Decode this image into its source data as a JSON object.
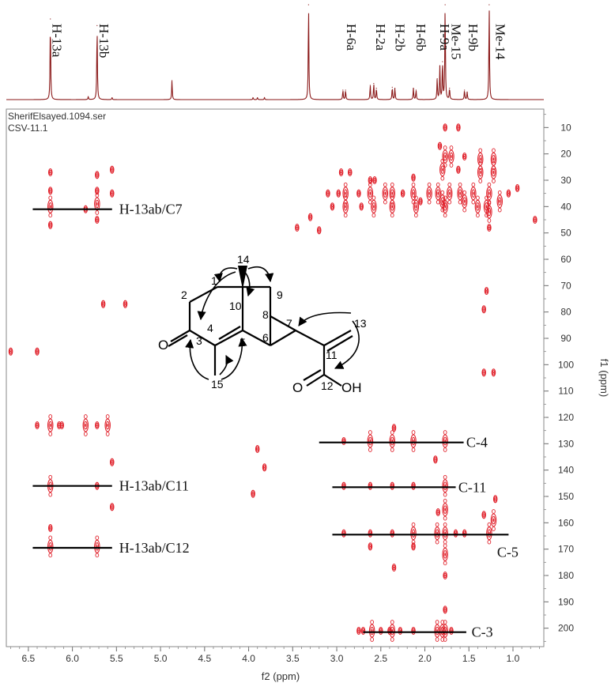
{
  "header": {
    "filename": "SherifElsayed.1094.ser",
    "sample": "CSV-11.1"
  },
  "chart_data": {
    "type": "heatmap",
    "title": "",
    "xlabel": "f2 (ppm)",
    "ylabel": "f1 (ppm)",
    "xlim": [
      6.75,
      0.65
    ],
    "ylim": [
      207,
      3
    ],
    "x_ticks": [
      "6.5",
      "6.0",
      "5.5",
      "5.0",
      "4.5",
      "4.0",
      "3.5",
      "3.0",
      "2.5",
      "2.0",
      "1.5",
      "1.0"
    ],
    "x_tick_values": [
      6.5,
      6.0,
      5.5,
      5.0,
      4.5,
      4.0,
      3.5,
      3.0,
      2.5,
      2.0,
      1.5,
      1.0
    ],
    "y_ticks": [
      "10",
      "20",
      "30",
      "40",
      "50",
      "60",
      "70",
      "80",
      "90",
      "100",
      "110",
      "120",
      "130",
      "140",
      "150",
      "160",
      "170",
      "180",
      "190",
      "200"
    ],
    "y_tick_values": [
      10,
      20,
      30,
      40,
      50,
      60,
      70,
      80,
      90,
      100,
      110,
      120,
      130,
      140,
      150,
      160,
      170,
      180,
      190,
      200
    ],
    "spectrum_1d": {
      "peaks": [
        {
          "ppm": 6.25,
          "height": 0.85
        },
        {
          "ppm": 5.72,
          "height": 0.78
        },
        {
          "ppm": 5.82,
          "height": 0.03
        },
        {
          "ppm": 5.55,
          "height": 0.02
        },
        {
          "ppm": 4.87,
          "height": 0.2
        },
        {
          "ppm": 3.95,
          "height": 0.02
        },
        {
          "ppm": 3.9,
          "height": 0.02
        },
        {
          "ppm": 3.82,
          "height": 0.02
        },
        {
          "ppm": 3.32,
          "height": 1.0
        },
        {
          "ppm": 2.93,
          "height": 0.1
        },
        {
          "ppm": 2.9,
          "height": 0.1
        },
        {
          "ppm": 2.62,
          "height": 0.15
        },
        {
          "ppm": 2.58,
          "height": 0.17
        },
        {
          "ppm": 2.55,
          "height": 0.12
        },
        {
          "ppm": 2.37,
          "height": 0.13
        },
        {
          "ppm": 2.34,
          "height": 0.12
        },
        {
          "ppm": 2.13,
          "height": 0.12
        },
        {
          "ppm": 2.1,
          "height": 0.1
        },
        {
          "ppm": 1.86,
          "height": 0.22
        },
        {
          "ppm": 1.83,
          "height": 0.35
        },
        {
          "ppm": 1.8,
          "height": 0.4
        },
        {
          "ppm": 1.77,
          "height": 1.0
        },
        {
          "ppm": 1.72,
          "height": 0.12
        },
        {
          "ppm": 1.55,
          "height": 0.1
        },
        {
          "ppm": 1.52,
          "height": 0.08
        },
        {
          "ppm": 1.27,
          "height": 1.0
        }
      ],
      "labels": [
        {
          "text": "H-13a",
          "ppm": 6.25
        },
        {
          "text": "H-13b",
          "ppm": 5.72
        },
        {
          "text": "H-6a",
          "ppm": 2.91
        },
        {
          "text": "H-2a",
          "ppm": 2.58
        },
        {
          "text": "H-2b",
          "ppm": 2.36
        },
        {
          "text": "H-6b",
          "ppm": 2.12
        },
        {
          "text": "H-9a",
          "ppm": 1.85
        },
        {
          "text": "Me-15",
          "ppm": 1.72
        },
        {
          "text": "H-9b",
          "ppm": 1.53
        },
        {
          "text": "Me-14",
          "ppm": 1.22
        }
      ]
    },
    "cross_peaks": [
      {
        "x": 1.77,
        "y": 10,
        "s": 1
      },
      {
        "x": 1.62,
        "y": 10,
        "s": 1
      },
      {
        "x": 1.83,
        "y": 17,
        "s": 1
      },
      {
        "x": 1.37,
        "y": 22,
        "s": 2
      },
      {
        "x": 1.37,
        "y": 27,
        "s": 2
      },
      {
        "x": 1.22,
        "y": 22,
        "s": 2
      },
      {
        "x": 1.22,
        "y": 27,
        "s": 2
      },
      {
        "x": 1.27,
        "y": 35,
        "s": 2
      },
      {
        "x": 1.27,
        "y": 42,
        "s": 2
      },
      {
        "x": 1.27,
        "y": 48,
        "s": 1
      },
      {
        "x": 1.77,
        "y": 21,
        "s": 2
      },
      {
        "x": 1.7,
        "y": 21,
        "s": 2
      },
      {
        "x": 1.8,
        "y": 26,
        "s": 2
      },
      {
        "x": 1.62,
        "y": 26,
        "s": 1
      },
      {
        "x": 1.55,
        "y": 21,
        "s": 1
      },
      {
        "x": 2.95,
        "y": 27,
        "s": 1
      },
      {
        "x": 2.85,
        "y": 27,
        "s": 1
      },
      {
        "x": 2.62,
        "y": 30,
        "s": 1
      },
      {
        "x": 2.57,
        "y": 30,
        "s": 1
      },
      {
        "x": 2.13,
        "y": 29,
        "s": 1
      },
      {
        "x": 2.9,
        "y": 35,
        "s": 2
      },
      {
        "x": 2.9,
        "y": 40,
        "s": 2
      },
      {
        "x": 2.62,
        "y": 35,
        "s": 2
      },
      {
        "x": 2.58,
        "y": 40,
        "s": 2
      },
      {
        "x": 2.45,
        "y": 35,
        "s": 2
      },
      {
        "x": 2.37,
        "y": 35,
        "s": 2
      },
      {
        "x": 2.37,
        "y": 40,
        "s": 2
      },
      {
        "x": 2.25,
        "y": 35,
        "s": 1
      },
      {
        "x": 2.13,
        "y": 35,
        "s": 2
      },
      {
        "x": 2.1,
        "y": 40,
        "s": 2
      },
      {
        "x": 1.95,
        "y": 35,
        "s": 2
      },
      {
        "x": 1.85,
        "y": 35,
        "s": 2
      },
      {
        "x": 1.8,
        "y": 38,
        "s": 2
      },
      {
        "x": 1.77,
        "y": 40,
        "s": 2
      },
      {
        "x": 1.72,
        "y": 35,
        "s": 2
      },
      {
        "x": 1.6,
        "y": 35,
        "s": 2
      },
      {
        "x": 1.55,
        "y": 38,
        "s": 2
      },
      {
        "x": 1.45,
        "y": 35,
        "s": 2
      },
      {
        "x": 1.4,
        "y": 40,
        "s": 2
      },
      {
        "x": 1.3,
        "y": 40,
        "s": 2
      },
      {
        "x": 1.15,
        "y": 38,
        "s": 2
      },
      {
        "x": 3.1,
        "y": 35,
        "s": 1
      },
      {
        "x": 3.05,
        "y": 40,
        "s": 1
      },
      {
        "x": 2.98,
        "y": 35,
        "s": 1
      },
      {
        "x": 2.75,
        "y": 35,
        "s": 1
      },
      {
        "x": 2.72,
        "y": 40,
        "s": 1
      },
      {
        "x": 2.05,
        "y": 38,
        "s": 1
      },
      {
        "x": 1.05,
        "y": 35,
        "s": 1
      },
      {
        "x": 0.95,
        "y": 33,
        "s": 1
      },
      {
        "x": 0.75,
        "y": 45,
        "s": 1
      },
      {
        "x": 3.45,
        "y": 48,
        "s": 1
      },
      {
        "x": 3.2,
        "y": 49,
        "s": 1
      },
      {
        "x": 3.3,
        "y": 44,
        "s": 1
      },
      {
        "x": 6.25,
        "y": 40,
        "s": 2
      },
      {
        "x": 6.25,
        "y": 34,
        "s": 1
      },
      {
        "x": 6.25,
        "y": 27,
        "s": 1
      },
      {
        "x": 6.25,
        "y": 47,
        "s": 1
      },
      {
        "x": 5.72,
        "y": 39,
        "s": 2
      },
      {
        "x": 5.72,
        "y": 34,
        "s": 1
      },
      {
        "x": 5.72,
        "y": 28,
        "s": 1
      },
      {
        "x": 5.72,
        "y": 45,
        "s": 1
      },
      {
        "x": 5.85,
        "y": 41,
        "s": 1
      },
      {
        "x": 5.55,
        "y": 35,
        "s": 1
      },
      {
        "x": 5.55,
        "y": 26,
        "s": 1
      },
      {
        "x": 6.25,
        "y": 123,
        "s": 2
      },
      {
        "x": 6.4,
        "y": 123,
        "s": 1
      },
      {
        "x": 6.15,
        "y": 123,
        "s": 1
      },
      {
        "x": 6.12,
        "y": 123,
        "s": 1
      },
      {
        "x": 5.85,
        "y": 123,
        "s": 2
      },
      {
        "x": 5.72,
        "y": 123,
        "s": 1
      },
      {
        "x": 5.6,
        "y": 123,
        "s": 2
      },
      {
        "x": 5.55,
        "y": 137,
        "s": 1
      },
      {
        "x": 6.25,
        "y": 146,
        "s": 2
      },
      {
        "x": 5.72,
        "y": 146,
        "s": 1
      },
      {
        "x": 5.55,
        "y": 154,
        "s": 1
      },
      {
        "x": 6.25,
        "y": 169,
        "s": 2
      },
      {
        "x": 6.25,
        "y": 162,
        "s": 1
      },
      {
        "x": 5.72,
        "y": 169,
        "s": 2
      },
      {
        "x": 5.65,
        "y": 77,
        "s": 1
      },
      {
        "x": 5.4,
        "y": 77,
        "s": 1
      },
      {
        "x": 6.7,
        "y": 95,
        "s": 1
      },
      {
        "x": 6.4,
        "y": 95,
        "s": 1
      },
      {
        "x": 1.33,
        "y": 79,
        "s": 1
      },
      {
        "x": 1.3,
        "y": 72,
        "s": 1
      },
      {
        "x": 1.22,
        "y": 103,
        "s": 1
      },
      {
        "x": 1.33,
        "y": 103,
        "s": 1
      },
      {
        "x": 3.9,
        "y": 132,
        "s": 1
      },
      {
        "x": 3.82,
        "y": 139,
        "s": 1
      },
      {
        "x": 3.95,
        "y": 149,
        "s": 1
      },
      {
        "x": 2.92,
        "y": 129,
        "s": 1
      },
      {
        "x": 2.62,
        "y": 129,
        "s": 2
      },
      {
        "x": 2.37,
        "y": 129,
        "s": 2
      },
      {
        "x": 2.13,
        "y": 129,
        "s": 2
      },
      {
        "x": 1.77,
        "y": 129,
        "s": 2
      },
      {
        "x": 1.88,
        "y": 136,
        "s": 1
      },
      {
        "x": 2.35,
        "y": 124,
        "s": 1
      },
      {
        "x": 2.92,
        "y": 146,
        "s": 1
      },
      {
        "x": 2.62,
        "y": 146,
        "s": 1
      },
      {
        "x": 2.37,
        "y": 146,
        "s": 1
      },
      {
        "x": 2.13,
        "y": 146,
        "s": 1
      },
      {
        "x": 1.77,
        "y": 146,
        "s": 2
      },
      {
        "x": 2.92,
        "y": 164,
        "s": 1
      },
      {
        "x": 2.62,
        "y": 164,
        "s": 1
      },
      {
        "x": 2.37,
        "y": 164,
        "s": 1
      },
      {
        "x": 2.13,
        "y": 164,
        "s": 2
      },
      {
        "x": 1.86,
        "y": 164,
        "s": 2
      },
      {
        "x": 1.77,
        "y": 164,
        "s": 2
      },
      {
        "x": 1.65,
        "y": 164,
        "s": 1
      },
      {
        "x": 1.55,
        "y": 164,
        "s": 1
      },
      {
        "x": 1.27,
        "y": 164,
        "s": 2
      },
      {
        "x": 1.22,
        "y": 159,
        "s": 2
      },
      {
        "x": 1.33,
        "y": 157,
        "s": 1
      },
      {
        "x": 1.2,
        "y": 151,
        "s": 1
      },
      {
        "x": 1.85,
        "y": 156,
        "s": 1
      },
      {
        "x": 1.77,
        "y": 155,
        "s": 2
      },
      {
        "x": 2.62,
        "y": 169,
        "s": 1
      },
      {
        "x": 2.13,
        "y": 169,
        "s": 1
      },
      {
        "x": 1.77,
        "y": 172,
        "s": 2
      },
      {
        "x": 1.77,
        "y": 180,
        "s": 1
      },
      {
        "x": 2.35,
        "y": 177,
        "s": 1
      },
      {
        "x": 2.75,
        "y": 201,
        "s": 1
      },
      {
        "x": 2.7,
        "y": 201,
        "s": 1
      },
      {
        "x": 2.6,
        "y": 201,
        "s": 2
      },
      {
        "x": 2.5,
        "y": 201,
        "s": 1
      },
      {
        "x": 2.4,
        "y": 201,
        "s": 1
      },
      {
        "x": 2.37,
        "y": 201,
        "s": 2
      },
      {
        "x": 2.28,
        "y": 201,
        "s": 1
      },
      {
        "x": 2.13,
        "y": 201,
        "s": 1
      },
      {
        "x": 1.86,
        "y": 201,
        "s": 2
      },
      {
        "x": 1.8,
        "y": 201,
        "s": 2
      },
      {
        "x": 1.77,
        "y": 201,
        "s": 2
      },
      {
        "x": 1.77,
        "y": 193,
        "s": 1
      },
      {
        "x": 1.7,
        "y": 201,
        "s": 1
      }
    ],
    "correlations": [
      {
        "label": "H-13ab/C7",
        "y": 41,
        "x_from": 6.45,
        "x_to": 5.55,
        "label_x": 5.47,
        "align": "left"
      },
      {
        "label": "H-13ab/C11",
        "y": 146,
        "x_from": 6.45,
        "x_to": 5.55,
        "label_x": 5.47,
        "align": "left"
      },
      {
        "label": "H-13ab/C12",
        "y": 169.5,
        "x_from": 6.45,
        "x_to": 5.55,
        "label_x": 5.47,
        "align": "left"
      },
      {
        "label": "C-4",
        "y": 129.5,
        "x_from": 3.2,
        "x_to": 1.56,
        "label_x": 1.53,
        "align": "left"
      },
      {
        "label": "C-11",
        "y": 146.5,
        "x_from": 3.05,
        "x_to": 1.65,
        "label_x": 1.62,
        "align": "left"
      },
      {
        "label": "C-5",
        "y": 164.5,
        "x_from": 3.05,
        "x_to": 1.05,
        "label_x": 1.18,
        "align": "below"
      },
      {
        "label": "C-3",
        "y": 201.5,
        "x_from": 2.7,
        "x_to": 1.53,
        "label_x": 1.47,
        "align": "left"
      }
    ],
    "structure": {
      "atom_labels": [
        "1",
        "2",
        "3",
        "4",
        "15",
        "10",
        "14",
        "9",
        "8",
        "5",
        "6",
        "7",
        "11",
        "13",
        "12"
      ],
      "oxygen_ketone": "O",
      "oxygen_carbonyl": "O",
      "hydroxyl": "OH"
    }
  }
}
